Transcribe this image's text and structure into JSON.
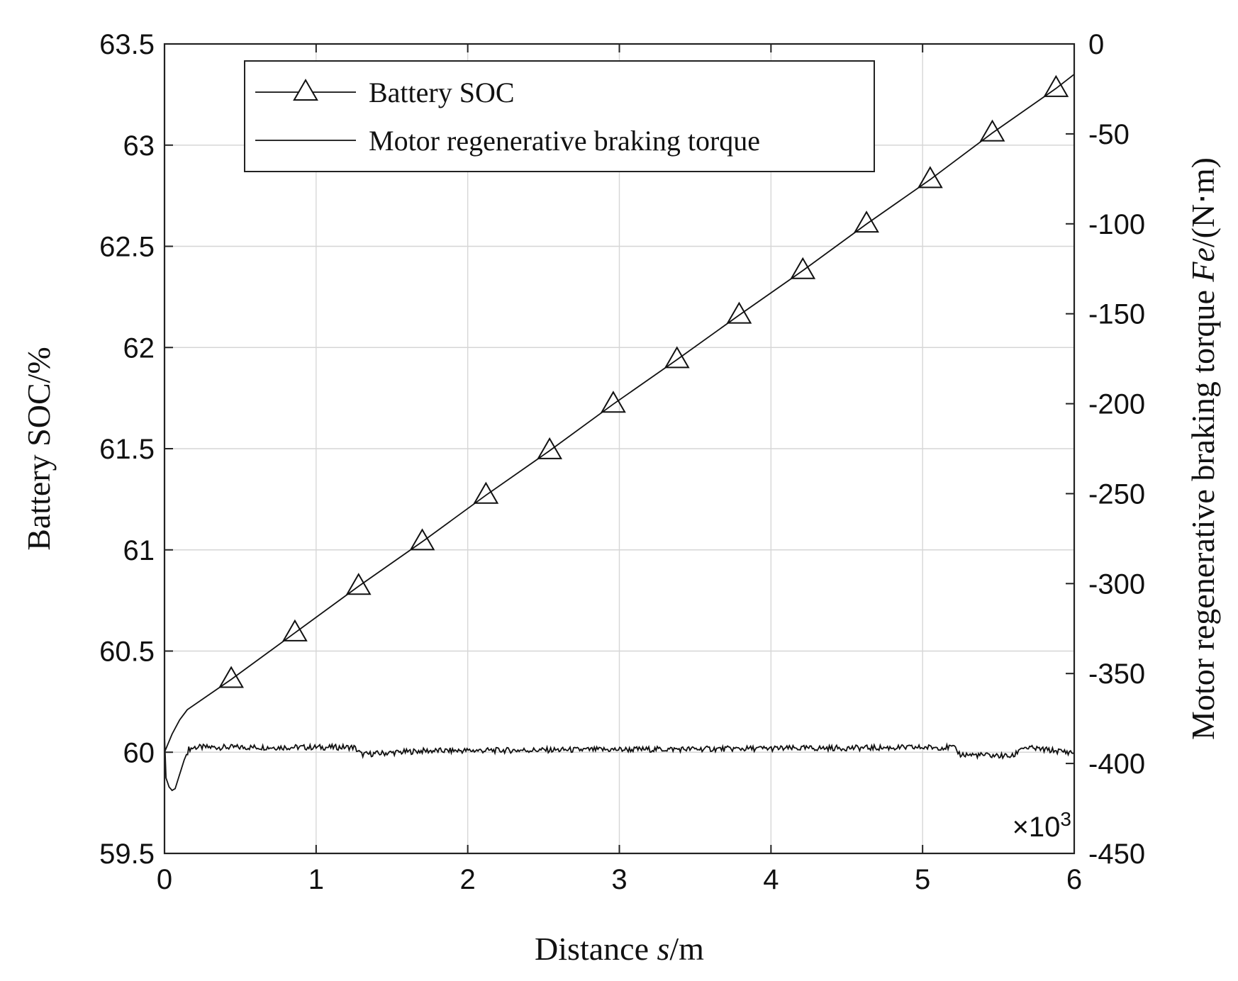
{
  "chart_data": {
    "type": "line",
    "xlabel_prefix": "Distance ",
    "xlabel_var": "s",
    "xlabel_suffix": "/m",
    "ylabel_left": "Battery SOC/%",
    "ylabel_right_prefix": "Motor regenerative braking torque ",
    "ylabel_right_var": "Fe",
    "ylabel_right_suffix": "/(N⋅m)",
    "x_exponent_base": "×10",
    "x_exponent_power": "3",
    "x_scale_factor": 1000,
    "xlim": [
      0,
      6
    ],
    "ylim_left": [
      59.5,
      63.5
    ],
    "ylim_right": [
      -450,
      0
    ],
    "x_ticks": [
      "0",
      "1",
      "2",
      "3",
      "4",
      "5",
      "6"
    ],
    "y_left_ticks": [
      "59.5",
      "60",
      "60.5",
      "61",
      "61.5",
      "62",
      "62.5",
      "63",
      "63.5"
    ],
    "y_right_ticks": [
      "-450",
      "-400",
      "-350",
      "-300",
      "-250",
      "-200",
      "-150",
      "-100",
      "-50",
      "0"
    ],
    "grid": true,
    "legend_position": "top-left",
    "series": [
      {
        "name": "Battery SOC",
        "axis": "left",
        "marker": "triangle",
        "x": [
          0.0,
          0.05,
          0.1,
          0.15,
          0.44,
          0.86,
          1.28,
          1.7,
          2.12,
          2.54,
          2.96,
          3.38,
          3.79,
          4.21,
          4.63,
          5.05,
          5.46,
          5.88,
          6.0
        ],
        "y": [
          60.0,
          60.09,
          60.16,
          60.21,
          60.36,
          60.59,
          60.82,
          61.04,
          61.27,
          61.49,
          61.72,
          61.94,
          62.16,
          62.38,
          62.61,
          62.83,
          63.06,
          63.28,
          63.35
        ],
        "marker_x": [
          0.44,
          0.86,
          1.28,
          1.7,
          2.12,
          2.54,
          2.96,
          3.38,
          3.79,
          4.21,
          4.63,
          5.05,
          5.46,
          5.88
        ],
        "marker_y": [
          60.36,
          60.59,
          60.82,
          61.04,
          61.27,
          61.49,
          61.72,
          61.94,
          62.16,
          62.38,
          62.61,
          62.83,
          63.06,
          63.28
        ]
      },
      {
        "name": "Motor regenerative braking torque",
        "axis": "right",
        "x": [
          0.0,
          0.01,
          0.03,
          0.05,
          0.07,
          0.1,
          0.13,
          0.16,
          0.2,
          1.0,
          1.25,
          1.3,
          1.5,
          1.7,
          5.2,
          5.25,
          5.6,
          5.65,
          6.0
        ],
        "y": [
          -385,
          -408,
          -413,
          -415,
          -414,
          -406,
          -398,
          -392,
          -391,
          -391,
          -391,
          -395,
          -394,
          -393,
          -391,
          -395,
          -396,
          -391,
          -394
        ]
      }
    ]
  }
}
